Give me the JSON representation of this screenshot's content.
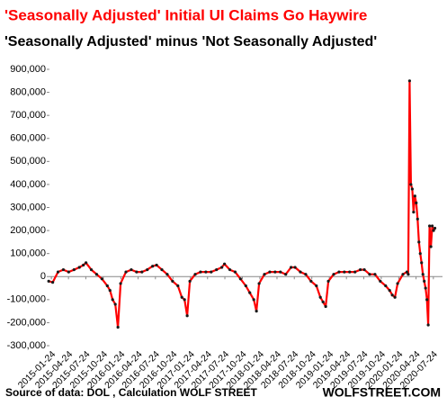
{
  "chart_data": {
    "type": "line",
    "title": "'Seasonally Adjusted' Initial UI Claims Go Haywire",
    "subtitle": "'Seasonally Adjusted' minus 'Not Seasonally Adjusted'",
    "source": "Source of data: DOL , Calculation WOLF STREET",
    "brand": "WOLFSTREET.COM",
    "x": [
      "2015-01-10",
      "2015-01-31",
      "2015-02-28",
      "2015-03-28",
      "2015-04-25",
      "2015-05-23",
      "2015-06-20",
      "2015-07-11",
      "2015-07-25",
      "2015-08-22",
      "2015-09-19",
      "2015-10-17",
      "2015-11-14",
      "2015-11-28",
      "2015-12-12",
      "2015-12-26",
      "2016-01-09",
      "2016-01-23",
      "2016-02-20",
      "2016-03-19",
      "2016-04-16",
      "2016-05-14",
      "2016-06-11",
      "2016-07-09",
      "2016-07-30",
      "2016-08-27",
      "2016-09-24",
      "2016-10-22",
      "2016-11-19",
      "2016-12-10",
      "2016-12-24",
      "2017-01-07",
      "2017-01-21",
      "2017-02-18",
      "2017-03-18",
      "2017-04-15",
      "2017-05-13",
      "2017-06-10",
      "2017-07-08",
      "2017-07-22",
      "2017-08-19",
      "2017-09-16",
      "2017-10-14",
      "2017-11-11",
      "2017-12-02",
      "2017-12-23",
      "2018-01-06",
      "2018-01-20",
      "2018-02-17",
      "2018-03-17",
      "2018-04-14",
      "2018-05-12",
      "2018-06-09",
      "2018-07-07",
      "2018-07-28",
      "2018-08-25",
      "2018-09-22",
      "2018-10-20",
      "2018-11-17",
      "2018-12-08",
      "2018-12-22",
      "2019-01-05",
      "2019-01-19",
      "2019-02-16",
      "2019-03-16",
      "2019-04-13",
      "2019-05-11",
      "2019-06-08",
      "2019-07-06",
      "2019-07-27",
      "2019-08-24",
      "2019-09-21",
      "2019-10-19",
      "2019-11-16",
      "2019-12-07",
      "2019-12-21",
      "2020-01-04",
      "2020-01-18",
      "2020-02-15",
      "2020-03-07",
      "2020-03-14",
      "2020-03-21",
      "2020-03-28",
      "2020-04-04",
      "2020-04-11",
      "2020-04-18",
      "2020-04-25",
      "2020-05-02",
      "2020-05-09",
      "2020-05-16",
      "2020-05-23",
      "2020-05-30",
      "2020-06-06",
      "2020-06-13",
      "2020-06-20",
      "2020-06-27",
      "2020-07-04",
      "2020-07-11",
      "2020-07-18",
      "2020-07-25",
      "2020-08-01"
    ],
    "series": [
      {
        "name": "SA minus NSA",
        "color": "#ff0000",
        "marker_color": "#1a1a1a",
        "values": [
          -20000,
          -25000,
          20000,
          30000,
          20000,
          30000,
          40000,
          50000,
          60000,
          30000,
          10000,
          -10000,
          -40000,
          -60000,
          -100000,
          -120000,
          -220000,
          -30000,
          20000,
          30000,
          20000,
          20000,
          30000,
          45000,
          50000,
          30000,
          10000,
          -20000,
          -40000,
          -90000,
          -100000,
          -170000,
          -20000,
          10000,
          20000,
          20000,
          20000,
          30000,
          40000,
          55000,
          30000,
          20000,
          -10000,
          -40000,
          -70000,
          -100000,
          -150000,
          -30000,
          10000,
          20000,
          20000,
          20000,
          10000,
          40000,
          40000,
          20000,
          10000,
          -20000,
          -40000,
          -90000,
          -110000,
          -130000,
          -20000,
          10000,
          20000,
          20000,
          20000,
          20000,
          30000,
          30000,
          10000,
          10000,
          -20000,
          -40000,
          -60000,
          -80000,
          -90000,
          -30000,
          10000,
          20000,
          10000,
          850000,
          400000,
          380000,
          280000,
          350000,
          320000,
          250000,
          150000,
          100000,
          60000,
          10000,
          -20000,
          -50000,
          -100000,
          -210000,
          220000,
          130000,
          220000,
          200000,
          210000
        ]
      }
    ],
    "xlim": [
      "2015-01-14",
      "2020-09-10"
    ],
    "xticks": [
      "2015-01-24",
      "2015-04-24",
      "2015-07-24",
      "2015-10-24",
      "2016-01-24",
      "2016-04-24",
      "2016-07-24",
      "2016-10-24",
      "2017-01-24",
      "2017-04-24",
      "2017-07-24",
      "2017-10-24",
      "2018-01-24",
      "2018-04-24",
      "2018-07-24",
      "2018-10-24",
      "2019-01-24",
      "2019-04-24",
      "2019-07-24",
      "2019-10-24",
      "2020-01-24",
      "2020-04-24",
      "2020-07-24"
    ],
    "ylim": [
      -300000,
      900000
    ],
    "yticks": [
      {
        "value": -300000,
        "label": "-300,000"
      },
      {
        "value": -200000,
        "label": "-200,000"
      },
      {
        "value": -100000,
        "label": "-100,000"
      },
      0,
      {
        "value": 100000,
        "label": "100,000"
      },
      {
        "value": 200000,
        "label": "200,000"
      },
      {
        "value": 300000,
        "label": "300,000"
      },
      {
        "value": 400000,
        "label": "400,000"
      },
      {
        "value": 500000,
        "label": "500,000"
      },
      {
        "value": 600000,
        "label": "600,000"
      },
      {
        "value": 700000,
        "label": "700,000"
      },
      {
        "value": 800000,
        "label": "800,000"
      },
      {
        "value": 900000,
        "label": "900,000"
      }
    ],
    "grid": false
  }
}
